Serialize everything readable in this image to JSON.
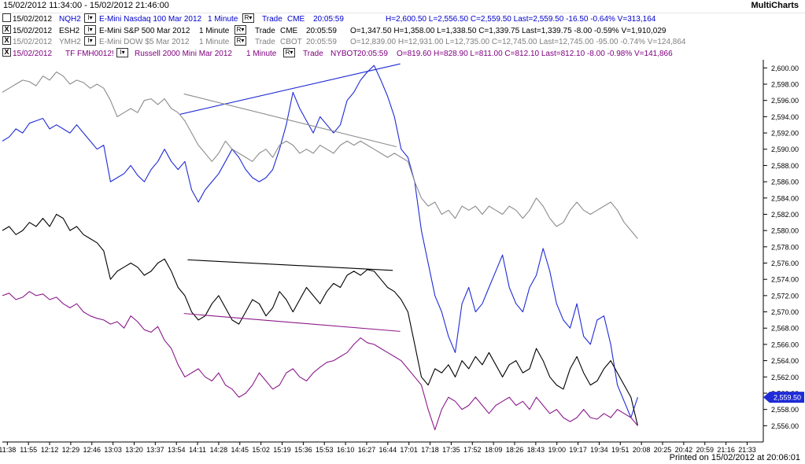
{
  "window": {
    "title_range": "15/02/2012 11:34:00 - 15/02/2012 21:46:00",
    "brand": "MultiCharts",
    "footer": "Printed on 15/02/2012 at 20:06:01"
  },
  "status_rows": [
    {
      "date": "15/02/2012",
      "symbol": "NQH2",
      "dd1": "I▾",
      "desc": "E-Mini Nasdaq 100 Mar 2012",
      "interval": "1 Minute",
      "dd2": "R▾",
      "kind": "Trade",
      "exch": "CME",
      "time": "20:05:59",
      "ohlc": "H=2,600.50  L=2,556.50  C=2,559.50  Last=2,559.50  -16.50  -0.64%  V=313,164",
      "color": "#0000cc",
      "box": ""
    },
    {
      "date": "15/02/2012",
      "symbol": "ESH2",
      "dd1": "I▾",
      "desc": "E-Mini S&P 500 Mar 2012",
      "interval": "1 Minute",
      "dd2": "R▾",
      "kind": "Trade",
      "exch": "CME",
      "time": "20:05:59",
      "ohlc": "O=1,347.50  H=1,358.00  L=1,338.50  C=1,339.75  Last=1,339.75  -8.00  -0.59%  V=1,910,029",
      "color": "#000000",
      "box": "X"
    },
    {
      "date": "15/02/2012",
      "symbol": "YMH2",
      "dd1": "I▾",
      "desc": "E-Mini DOW $5 Mar 2012",
      "interval": "1 Minute",
      "dd2": "R▾",
      "kind": "Trade",
      "exch": "CBOT",
      "time": "20:05:59",
      "ohlc": "O=12,839.00  H=12,931.00  L=12,735.00  C=12,745.00  Last=12,745.00  -95.00  -0.74%  V=124,864",
      "color": "#808080",
      "box": "X"
    },
    {
      "date": "15/02/2012",
      "symbol": "TF  FMH0012!",
      "dd1": "I▾",
      "desc": "Russell 2000 Mini Mar 2012",
      "interval": "1 Minute",
      "dd2": "R▾",
      "kind": "Trade",
      "exch": "NYBOT",
      "time": "20:05:59",
      "ohlc": "O=819.60  H=828.90  L=811.00  C=812.10  Last=812.10  -8.00  -0.98%  V=141,866",
      "color": "#800080",
      "box": "X"
    }
  ],
  "chart_data": {
    "type": "line",
    "ylim": [
      2554,
      2601
    ],
    "y_ticks": [
      "2,600.00",
      "2,598.00",
      "2,596.00",
      "2,594.00",
      "2,592.00",
      "2,590.00",
      "2,588.00",
      "2,586.00",
      "2,584.00",
      "2,582.00",
      "2,580.00",
      "2,578.00",
      "2,576.00",
      "2,574.00",
      "2,572.00",
      "2,570.00",
      "2,568.00",
      "2,566.00",
      "2,564.00",
      "2,562.00",
      "2,560.00",
      "2,558.00",
      "2,556.00"
    ],
    "x_ticks": [
      "11:38",
      "11:55",
      "12:12",
      "12:29",
      "12:46",
      "13:03",
      "13:20",
      "13:37",
      "13:54",
      "14:11",
      "14:28",
      "14:45",
      "15:02",
      "15:19",
      "15:36",
      "15:53",
      "16:10",
      "16:27",
      "16:44",
      "17:01",
      "17:18",
      "17:35",
      "17:52",
      "18:09",
      "18:26",
      "18:43",
      "19:00",
      "19:17",
      "19:34",
      "19:51",
      "20:08",
      "20:25",
      "20:42",
      "20:59",
      "21:16",
      "21:33"
    ],
    "last_price_label": "2,559.50",
    "series": [
      {
        "name": "NQH2",
        "color": "#1f2bd6",
        "values": [
          2591,
          2591.5,
          2592.5,
          2592,
          2593.2,
          2593.5,
          2593.8,
          2592.5,
          2593,
          2592.5,
          2592,
          2593,
          2592,
          2591,
          2590,
          2590.5,
          2586,
          2586.5,
          2587,
          2588,
          2586.8,
          2586,
          2587.5,
          2588.5,
          2590,
          2588.5,
          2587.5,
          2588.5,
          2585,
          2583.5,
          2585,
          2586,
          2587,
          2588.5,
          2590,
          2589,
          2587.5,
          2586.5,
          2586,
          2586.5,
          2587.5,
          2590,
          2593,
          2597,
          2595,
          2593.5,
          2592,
          2594,
          2593,
          2592,
          2593,
          2596,
          2597,
          2598.5,
          2599.5,
          2600.3,
          2598.5,
          2596.5,
          2594,
          2590,
          2589,
          2586,
          2580,
          2576,
          2572,
          2570,
          2567,
          2565,
          2571,
          2573,
          2570,
          2571,
          2573,
          2575,
          2577,
          2573,
          2571,
          2570,
          2573,
          2574.5,
          2577.8,
          2575,
          2571,
          2569,
          2568,
          2571,
          2567,
          2566,
          2569,
          2569.5,
          2566,
          2561,
          2559,
          2557,
          2559.5
        ]
      },
      {
        "name": "YMH2",
        "color": "#8c8c8c",
        "values": [
          2597,
          2597.5,
          2598,
          2598.5,
          2598.3,
          2597.8,
          2599,
          2598.5,
          2599.5,
          2599,
          2598,
          2598.5,
          2598.2,
          2597.5,
          2598,
          2597.5,
          2596,
          2594,
          2594.5,
          2595,
          2594.5,
          2596,
          2596.2,
          2595.5,
          2596.2,
          2595,
          2594.5,
          2593.5,
          2592,
          2590.5,
          2589.5,
          2588.5,
          2589.5,
          2591,
          2590,
          2589.5,
          2589,
          2588.5,
          2589.5,
          2590,
          2589,
          2590.5,
          2591,
          2590.5,
          2589.5,
          2590,
          2589.5,
          2590.5,
          2590,
          2589.5,
          2590.5,
          2591,
          2590.5,
          2591,
          2590.5,
          2590,
          2589.5,
          2589,
          2589.5,
          2589,
          2588.5,
          2586,
          2584,
          2583,
          2583.5,
          2582,
          2582.5,
          2581.5,
          2583,
          2582.5,
          2583,
          2582,
          2583,
          2582.5,
          2582,
          2583,
          2582.5,
          2581.5,
          2582.5,
          2584,
          2583,
          2581.5,
          2580.5,
          2581,
          2582.5,
          2583.5,
          2582.5,
          2582,
          2582.5,
          2583,
          2583.5,
          2582.5,
          2581,
          2580,
          2579
        ]
      },
      {
        "name": "ESH2",
        "color": "#000000",
        "values": [
          2580,
          2580.5,
          2579.5,
          2580,
          2581,
          2580.5,
          2581.5,
          2580.5,
          2582,
          2581.5,
          2580,
          2580.5,
          2579.5,
          2579,
          2578.5,
          2577.5,
          2574,
          2575,
          2575.5,
          2576,
          2575.5,
          2574.5,
          2575,
          2576,
          2576.5,
          2575,
          2573,
          2572,
          2570,
          2569,
          2569.5,
          2571,
          2572,
          2570.5,
          2569,
          2568.5,
          2570,
          2571.5,
          2571,
          2569.5,
          2570.5,
          2572.5,
          2571.5,
          2570,
          2571.5,
          2573,
          2572,
          2571,
          2572.5,
          2573.5,
          2573,
          2574.5,
          2575,
          2574.5,
          2575.2,
          2575,
          2574,
          2573,
          2572.5,
          2571.5,
          2570,
          2566,
          2562,
          2561,
          2563,
          2562.5,
          2563.5,
          2562,
          2564,
          2563,
          2564.5,
          2563.5,
          2565,
          2563.5,
          2562,
          2563.5,
          2564,
          2562.5,
          2563,
          2565.5,
          2564,
          2562,
          2561,
          2560.5,
          2563,
          2564.5,
          2562.5,
          2561,
          2561.5,
          2563,
          2564,
          2562.5,
          2561,
          2559.5,
          2556
        ]
      },
      {
        "name": "TF",
        "color": "#8b1a8b",
        "values": [
          2572,
          2572.3,
          2571.5,
          2571.8,
          2572.5,
          2572,
          2572.2,
          2571.5,
          2571.8,
          2571,
          2570.5,
          2571,
          2570,
          2569.5,
          2569.2,
          2569,
          2568.5,
          2568.8,
          2568,
          2569.5,
          2568.8,
          2567.8,
          2567.5,
          2568.2,
          2566.5,
          2565.5,
          2563.5,
          2562,
          2562.5,
          2563,
          2562,
          2561.5,
          2562.5,
          2561,
          2560.5,
          2559.5,
          2560,
          2561,
          2562.5,
          2561.5,
          2560.5,
          2561,
          2562.5,
          2563,
          2562,
          2561.5,
          2562.5,
          2563.2,
          2563.8,
          2564,
          2564.5,
          2565,
          2566,
          2566.8,
          2566.2,
          2566,
          2565.5,
          2565,
          2564.5,
          2564,
          2563,
          2562,
          2561,
          2558,
          2555.5,
          2558,
          2559.5,
          2559,
          2558,
          2558.5,
          2559.5,
          2558.5,
          2557.5,
          2558.5,
          2559,
          2559.5,
          2558.5,
          2559,
          2558,
          2559.5,
          2558.5,
          2557.5,
          2558,
          2557,
          2556.5,
          2557,
          2558,
          2557,
          2556.8,
          2557.5,
          2557,
          2558,
          2557.5,
          2557,
          2556
        ]
      }
    ],
    "trendlines": [
      {
        "color": "#1f2bd6",
        "from": [
          13.95,
          2594.3
        ],
        "to": [
          16.9,
          2600.5
        ]
      },
      {
        "color": "#8c8c8c",
        "from": [
          14.0,
          2596.8
        ],
        "to": [
          16.85,
          2590.3
        ]
      },
      {
        "color": "#000000",
        "from": [
          14.05,
          2576.4
        ],
        "to": [
          16.8,
          2575.1
        ]
      },
      {
        "color": "#8b1a8b",
        "from": [
          14.0,
          2569.8
        ],
        "to": [
          16.9,
          2567.6
        ]
      }
    ]
  }
}
